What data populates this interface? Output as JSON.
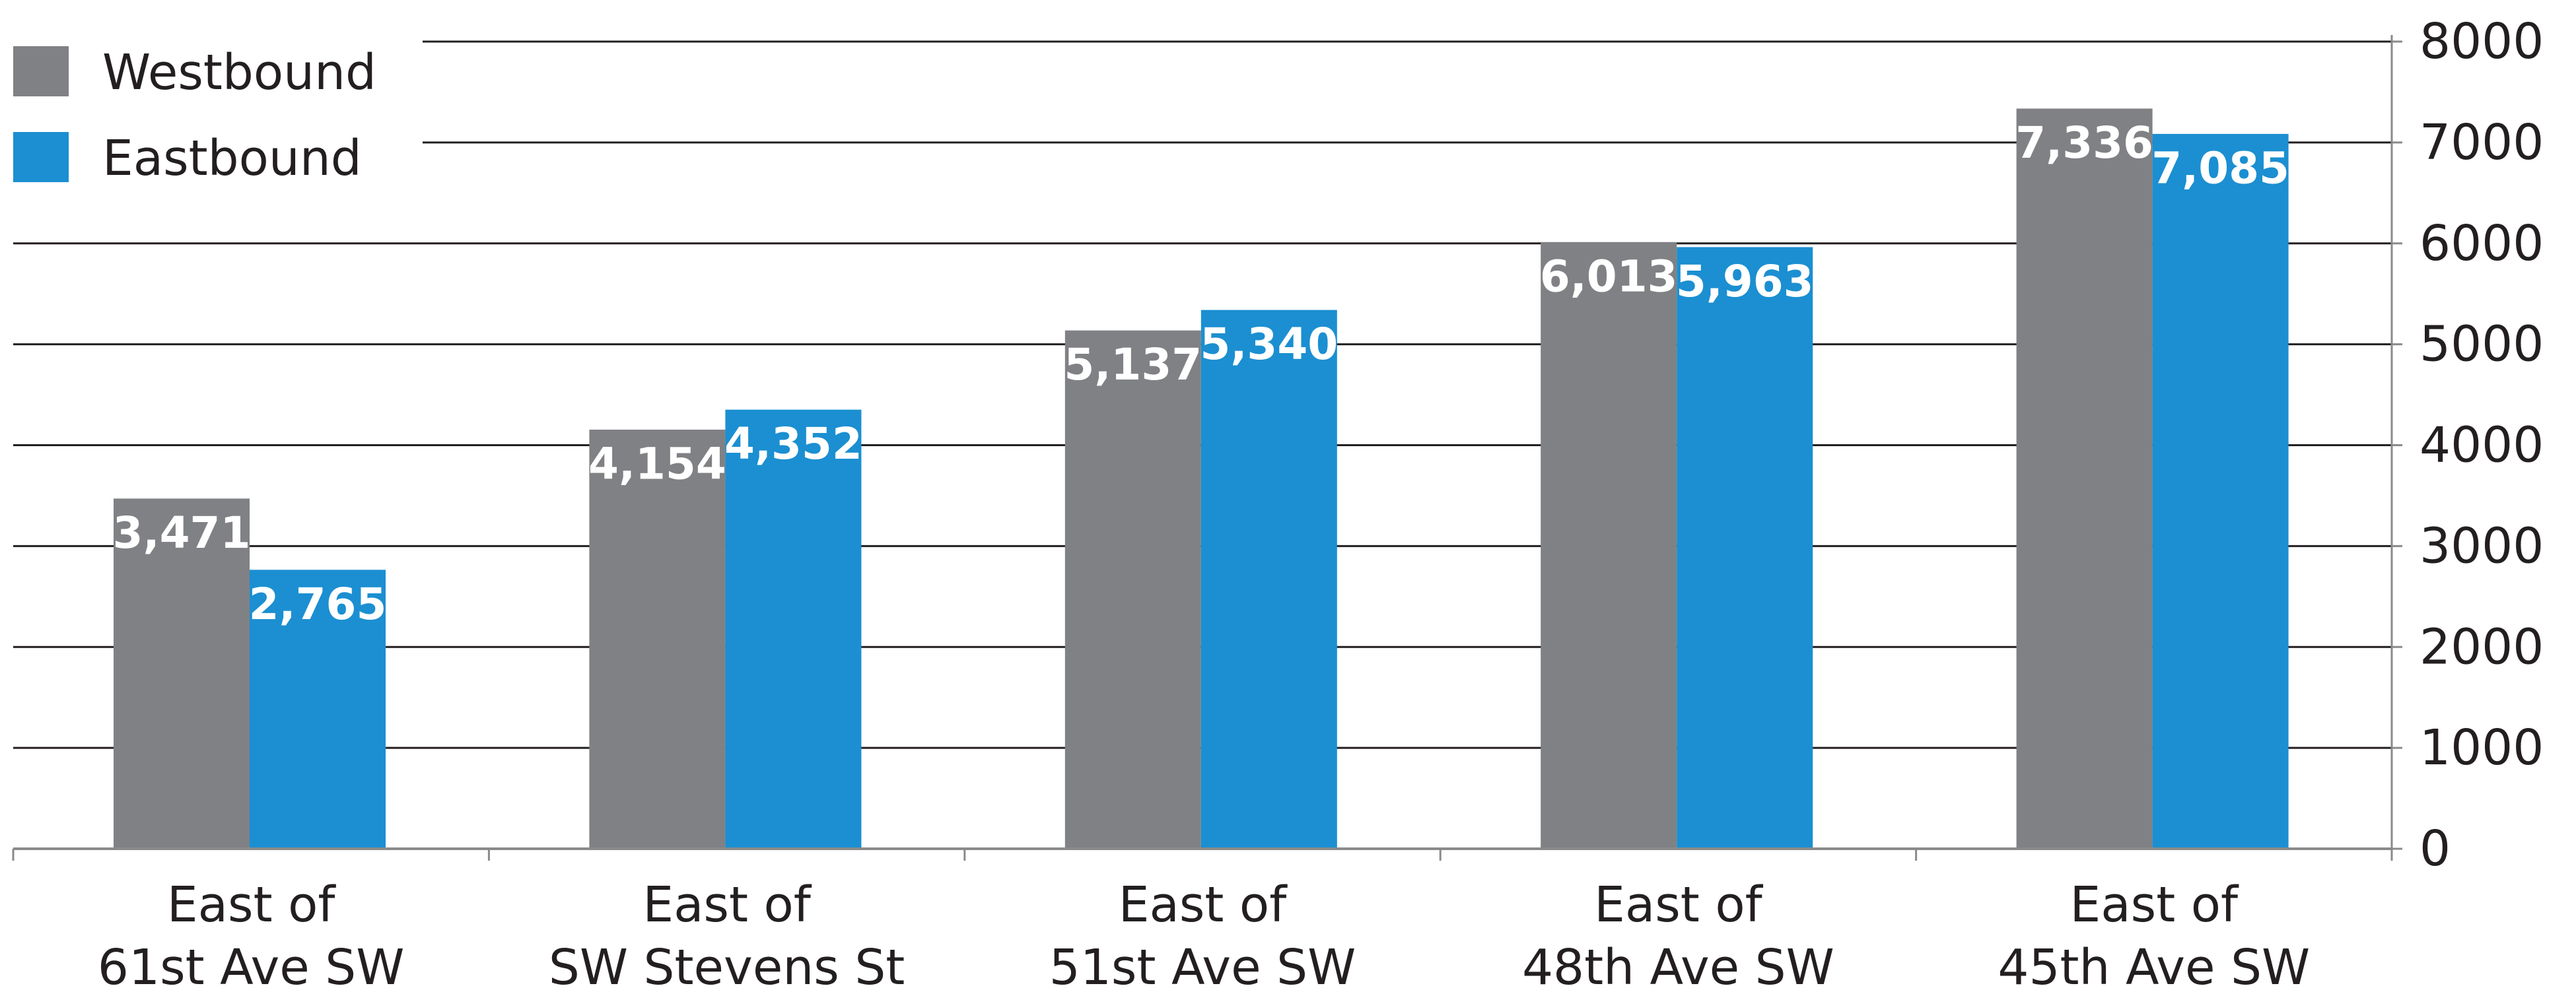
{
  "chart_data": {
    "type": "bar",
    "categories": [
      [
        "East of",
        "61st Ave SW"
      ],
      [
        "East of",
        "SW Stevens St"
      ],
      [
        "East of",
        "51st Ave SW"
      ],
      [
        "East of",
        "48th Ave SW"
      ],
      [
        "East of",
        "45th Ave SW"
      ]
    ],
    "series": [
      {
        "name": "Westbound",
        "color": "#808184",
        "values": [
          3471,
          4154,
          5137,
          6013,
          7336
        ],
        "labels": [
          "3,471",
          "4,154",
          "5,137",
          "6,013",
          "7,336"
        ]
      },
      {
        "name": "Eastbound",
        "color": "#1b8fd1",
        "values": [
          2765,
          4352,
          5340,
          5963,
          7085
        ],
        "labels": [
          "2,765",
          "4,352",
          "5,340",
          "5,963",
          "7,085"
        ]
      }
    ],
    "title": "",
    "xlabel": "",
    "ylabel": "",
    "ylim": [
      0,
      8000
    ],
    "yticks": [
      0,
      1000,
      2000,
      3000,
      4000,
      5000,
      6000,
      7000,
      8000
    ],
    "y_axis_side": "right",
    "grid": true,
    "legend_position": "top-left"
  }
}
